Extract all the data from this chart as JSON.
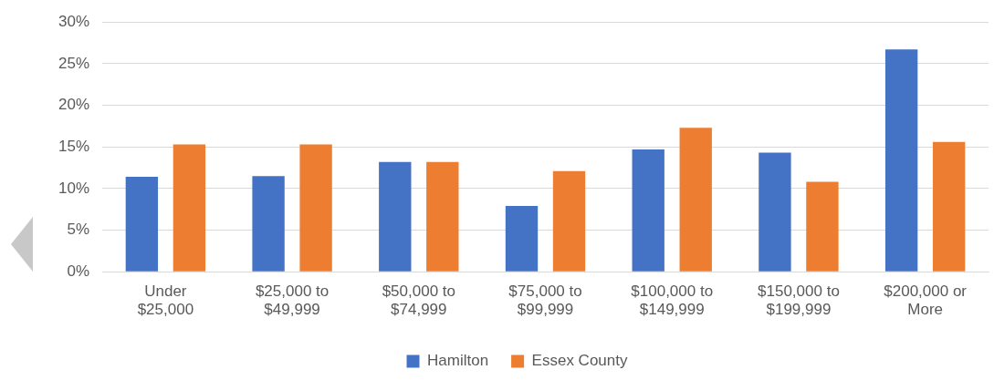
{
  "chart_data": {
    "type": "bar",
    "categories": [
      "Under $25,000",
      "$25,000 to $49,999",
      "$50,000 to $74,999",
      "$75,000 to $99,999",
      "$100,000 to $149,999",
      "$150,000 to $199,999",
      "$200,000 or More"
    ],
    "series": [
      {
        "name": "Hamilton",
        "color": "#4472c4",
        "values": [
          11.4,
          11.5,
          13.2,
          7.9,
          14.7,
          14.3,
          26.7
        ]
      },
      {
        "name": "Essex County",
        "color": "#ed7d31",
        "values": [
          15.3,
          15.3,
          13.2,
          12.1,
          17.3,
          10.8,
          15.6
        ]
      }
    ],
    "ylim": [
      0,
      30
    ],
    "yticks": [
      {
        "value": 0,
        "label": "0%"
      },
      {
        "value": 5,
        "label": "5%"
      },
      {
        "value": 10,
        "label": "10%"
      },
      {
        "value": 15,
        "label": "15%"
      },
      {
        "value": 20,
        "label": "20%"
      },
      {
        "value": 25,
        "label": "25%"
      },
      {
        "value": 30,
        "label": "30%"
      }
    ],
    "grid": "y",
    "legend": "bottom"
  }
}
